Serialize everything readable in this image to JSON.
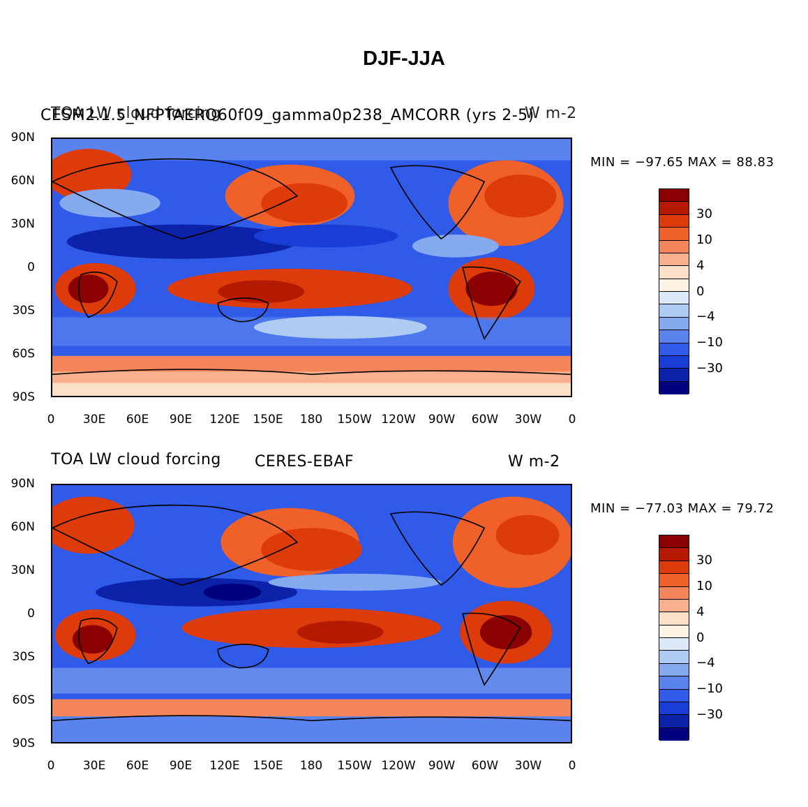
{
  "title": "DJF-JJA",
  "panels": [
    {
      "left_title": "TOA LW cloud forcing",
      "center_title": "CESM2.1.5_NFPTAERO60f09_gamma0p238_AMCORR (yrs 2-5)",
      "units": "W m-2",
      "minmax": "MIN = −97.65 MAX =  88.83"
    },
    {
      "left_title": "TOA LW cloud forcing",
      "center_title": "CERES-EBAF",
      "units": "W m-2",
      "minmax": "MIN = −77.03 MAX =  79.72"
    }
  ],
  "lat_labels": [
    "90N",
    "60N",
    "30N",
    "0",
    "30S",
    "60S",
    "90S"
  ],
  "lon_labels": [
    "0",
    "30E",
    "60E",
    "90E",
    "120E",
    "150E",
    "180",
    "150W",
    "120W",
    "90W",
    "60W",
    "30W",
    "0"
  ],
  "colorbar": {
    "colors": [
      "#8b0000",
      "#b51a00",
      "#dd3c0a",
      "#f0612a",
      "#f4845a",
      "#f9b08e",
      "#fde0c8",
      "#fff3e6",
      "#dbe9f8",
      "#aecbf4",
      "#86aaf0",
      "#5a83ef",
      "#2f5be8",
      "#1a3ed5",
      "#0c22a8",
      "#00007f"
    ],
    "labels": [
      "30",
      "10",
      "4",
      "0",
      "−4",
      "−10",
      "−30"
    ]
  }
}
